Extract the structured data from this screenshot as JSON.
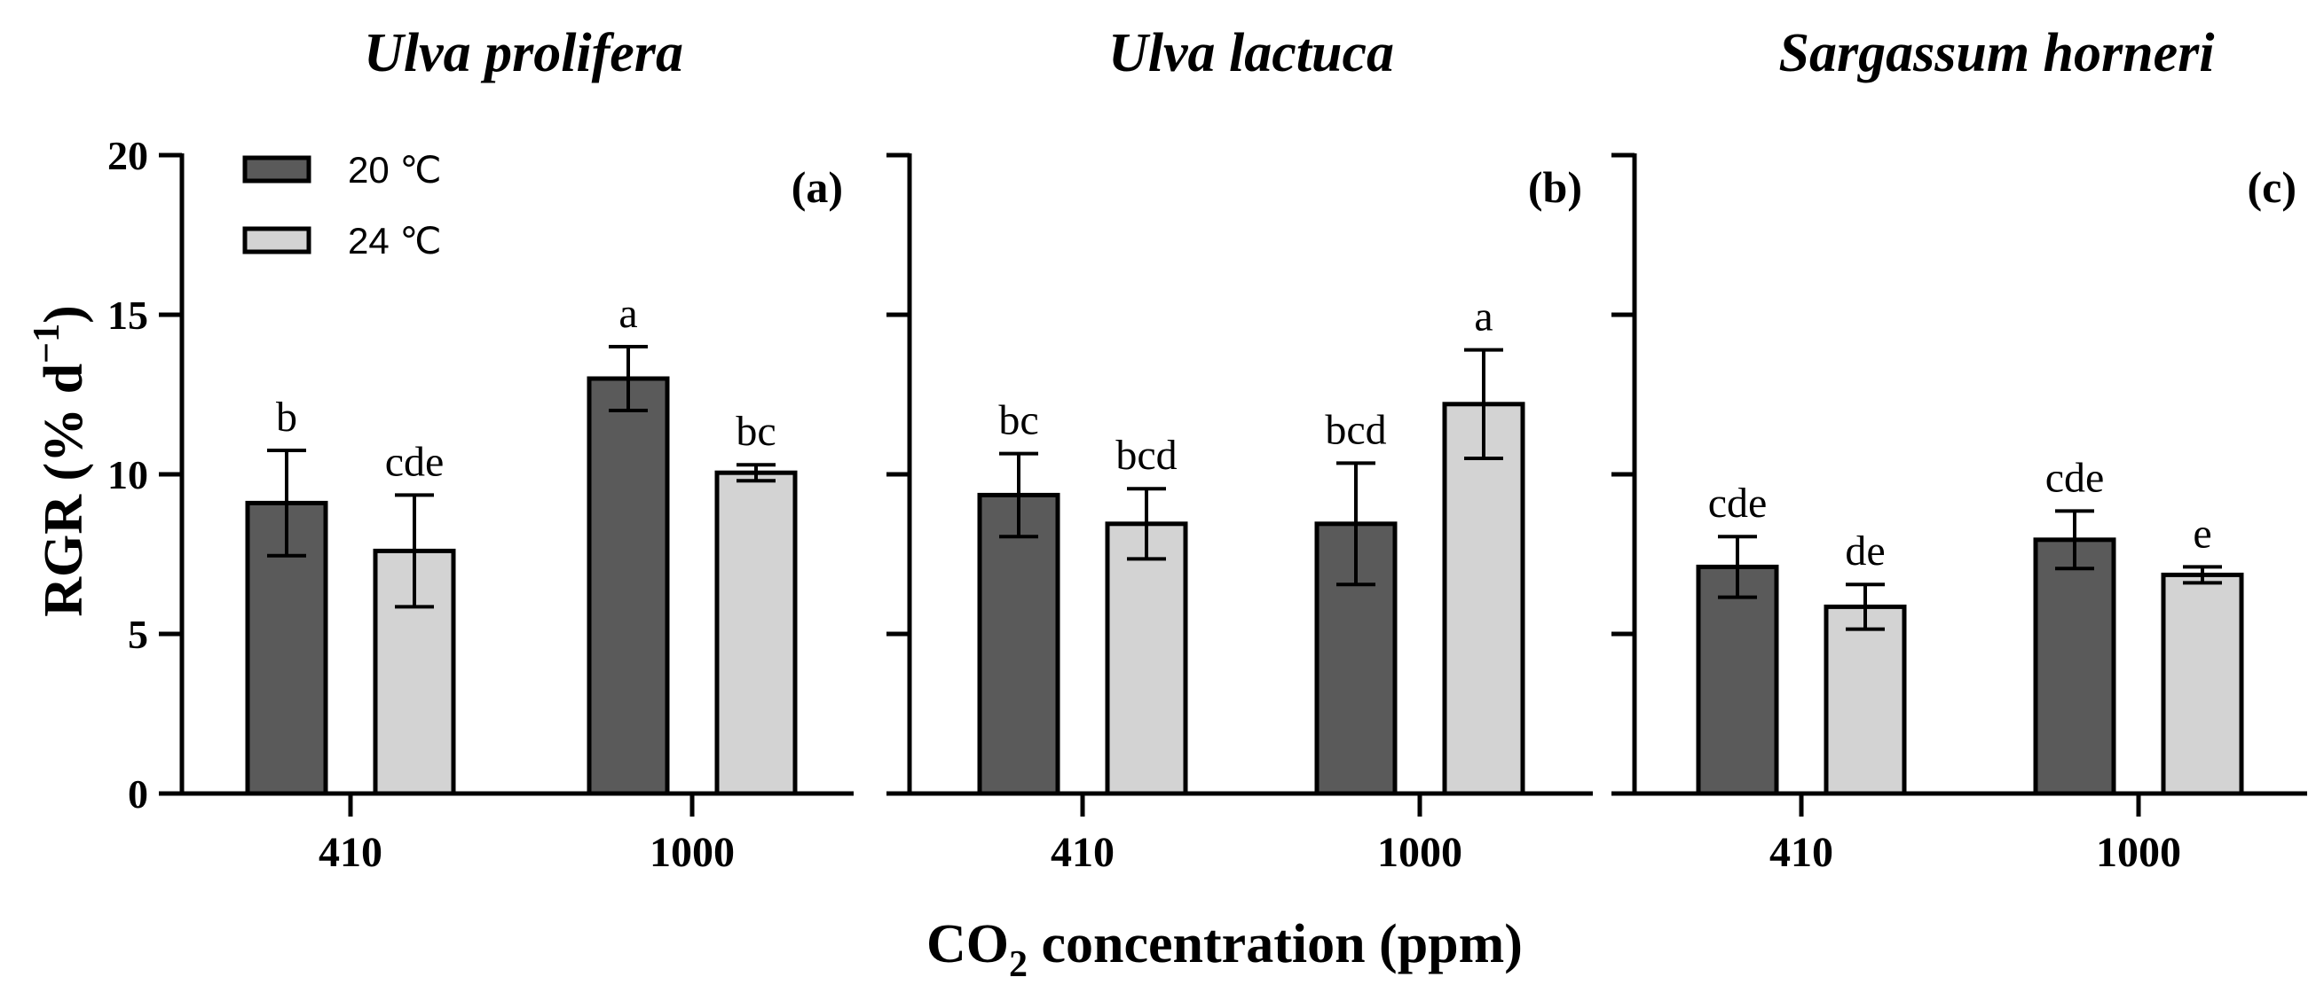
{
  "chart_data": {
    "type": "bar",
    "ylabel_main": "RGR (% d",
    "ylabel_sup": "−1",
    "ylabel_close": ")",
    "xlabel_pre": "CO",
    "xlabel_sub": "2",
    "xlabel_post": " concentration (ppm)",
    "ylim": [
      0,
      20
    ],
    "yticks": [
      "0",
      "5",
      "10",
      "15",
      "20"
    ],
    "categories": [
      "410",
      "1000"
    ],
    "legend": {
      "position": "top-left",
      "entries": [
        {
          "name": "20 ℃",
          "color": "#5a5a5a"
        },
        {
          "name": "24 ℃",
          "color": "#d3d3d3"
        }
      ]
    },
    "panels": [
      {
        "title": "Ulva prolifera",
        "letter": "(a)",
        "series": [
          {
            "name": "20 ℃",
            "values": [
              9.1,
              13.0
            ],
            "errors": [
              1.65,
              1.0
            ],
            "labels": [
              "b",
              "a"
            ]
          },
          {
            "name": "24 ℃",
            "values": [
              7.6,
              10.05
            ],
            "errors": [
              1.75,
              0.25
            ],
            "labels": [
              "cde",
              "bc"
            ]
          }
        ]
      },
      {
        "title": "Ulva lactuca",
        "letter": "(b)",
        "series": [
          {
            "name": "20 ℃",
            "values": [
              9.35,
              8.45
            ],
            "errors": [
              1.3,
              1.9
            ],
            "labels": [
              "bc",
              "bcd"
            ]
          },
          {
            "name": "24 ℃",
            "values": [
              8.45,
              12.2
            ],
            "errors": [
              1.1,
              1.7
            ],
            "labels": [
              "bcd",
              "a"
            ]
          }
        ]
      },
      {
        "title": "Sargassum horneri",
        "letter": "(c)",
        "series": [
          {
            "name": "20 ℃",
            "values": [
              7.1,
              7.95
            ],
            "errors": [
              0.95,
              0.9
            ],
            "labels": [
              "cde",
              "cde"
            ]
          },
          {
            "name": "24 ℃",
            "values": [
              5.85,
              6.85
            ],
            "errors": [
              0.7,
              0.25
            ],
            "labels": [
              "de",
              "e"
            ]
          }
        ]
      }
    ]
  }
}
